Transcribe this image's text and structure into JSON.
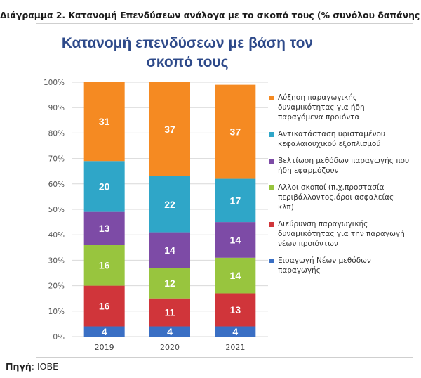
{
  "caption": "Διάγραμμα 2. Κατανομή Επενδύσεων ανάλογα με το σκοπό τους (% συνόλου δαπάνης",
  "source": {
    "label": "Πηγή",
    "rest": ": ΙΟΒΕ"
  },
  "chart_data": {
    "type": "bar",
    "stacked": true,
    "title_line1": "Κατανομή επενδύσεων με βάση τον",
    "title_line2": "σκοπό τους",
    "categories": [
      "2019",
      "2020",
      "2021"
    ],
    "ylim": [
      0,
      100
    ],
    "yticks": [
      "0%",
      "10%",
      "20%",
      "30%",
      "40%",
      "50%",
      "60%",
      "70%",
      "80%",
      "90%",
      "100%"
    ],
    "grid": true,
    "legend_position": "right",
    "series": [
      {
        "name": "Εισαγωγή Νέων μεθόδων παραγωγής",
        "color": "#3a6fc4",
        "values": [
          4,
          4,
          4
        ]
      },
      {
        "name": "Διεύρυνση παραγωγικής δυναμικότητας για την παραγωγή νέων προιόντων",
        "color": "#d0353a",
        "values": [
          16,
          11,
          13
        ]
      },
      {
        "name": "Αλλοι σκοποί (π.χ.προστασία περιβάλλοντος,όροι ασφαλείας κλπ)",
        "color": "#98c53e",
        "values": [
          16,
          12,
          14
        ]
      },
      {
        "name": "Βελτίωση μεθόδων παραγωγής που ήδη εφαρμόζουν",
        "color": "#7d4ba6",
        "values": [
          13,
          14,
          14
        ]
      },
      {
        "name": "Αντικατάσταση υφισταμένου κεφαλαιουχικού εξοπλισμού",
        "color": "#2fa6c8",
        "values": [
          20,
          22,
          17
        ]
      },
      {
        "name": "Αύξηση παραγωγικής δυναμικότητας για ήδη παραγόμενα προιόντα",
        "color": "#f58a22",
        "values": [
          31,
          37,
          37
        ]
      }
    ]
  }
}
